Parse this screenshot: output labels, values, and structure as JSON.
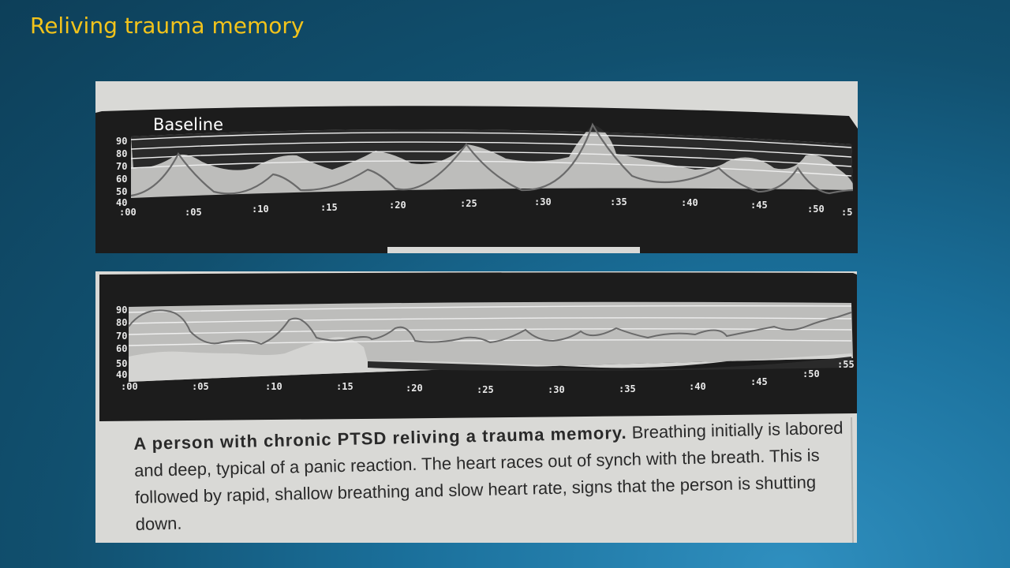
{
  "slide": {
    "title": "Reliving trauma memory"
  },
  "top_chart": {
    "label": "Baseline",
    "y_ticks": [
      "90",
      "80",
      "70",
      "60",
      "50",
      "40"
    ],
    "x_ticks": [
      ":00",
      ":05",
      ":10",
      ":15",
      ":20",
      ":25",
      ":30",
      ":35",
      ":40",
      ":45",
      ":50",
      ":5"
    ]
  },
  "bottom_chart": {
    "y_ticks": [
      "90",
      "80",
      "70",
      "60",
      "50",
      "40"
    ],
    "x_ticks": [
      ":00",
      ":05",
      ":10",
      ":15",
      ":20",
      ":25",
      ":30",
      ":35",
      ":40",
      ":45",
      ":50",
      ":55"
    ],
    "caption_bold": "A person with chronic PTSD reliving a trauma memory.",
    "caption_rest": " Breathing initially is labored and deep, typical of a panic reaction. The heart races out of synch with the breath. This is followed by rapid, shallow breathing and slow heart rate, signs that the person is shutting down."
  },
  "colors": {
    "title": "#f2c31b",
    "panel": "#1c1c1c",
    "paper": "#d9d9d6"
  }
}
